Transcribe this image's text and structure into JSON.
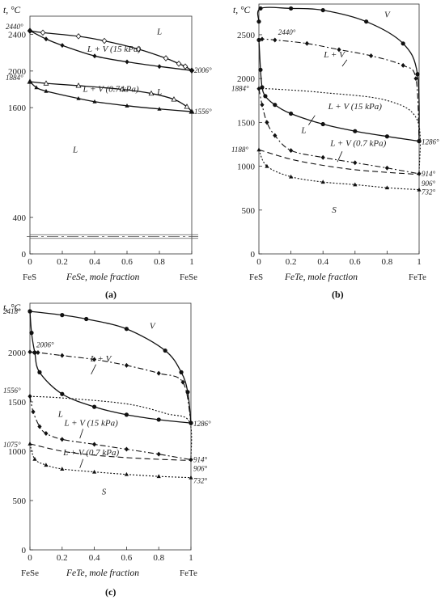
{
  "chart_data": [
    {
      "type": "line",
      "panel": "(a)",
      "ylabel": "t, °C",
      "xlabel": "FeSe, mole fraction",
      "x_end_labels": [
        "FeS",
        "FeSe"
      ],
      "xlim": [
        0,
        1
      ],
      "ylim": [
        0,
        2600
      ],
      "yticks": [
        0,
        400,
        1600,
        2000,
        2400
      ],
      "xticks": [
        0,
        0.2,
        0.4,
        0.6,
        0.8,
        1
      ],
      "region_labels": [
        "L",
        "L",
        "L",
        "L + V (15 kPa)",
        "L + V (0.7 kPa)"
      ],
      "annotations": [
        "2440°",
        "2006°",
        "1884°",
        "1556°"
      ],
      "series": [
        {
          "style": "solid",
          "marker": "open-diamond",
          "x": [
            0,
            0.08,
            0.3,
            0.46,
            0.67,
            0.84,
            0.92,
            0.96,
            1
          ],
          "y": [
            2440,
            2420,
            2380,
            2330,
            2240,
            2140,
            2080,
            2050,
            2006
          ]
        },
        {
          "style": "solid",
          "marker": "filled-diamond",
          "x": [
            0,
            0.1,
            0.2,
            0.4,
            0.6,
            0.8,
            1
          ],
          "y": [
            2440,
            2350,
            2280,
            2165,
            2100,
            2050,
            2006
          ]
        },
        {
          "style": "solid",
          "marker": "open-triangle",
          "x": [
            0,
            0.1,
            0.3,
            0.57,
            0.75,
            0.89,
            0.97,
            1
          ],
          "y": [
            1884,
            1865,
            1840,
            1800,
            1755,
            1690,
            1610,
            1556
          ]
        },
        {
          "style": "solid",
          "marker": "filled-triangle",
          "x": [
            0,
            0.04,
            0.1,
            0.3,
            0.4,
            0.6,
            0.8,
            1
          ],
          "y": [
            1884,
            1820,
            1780,
            1700,
            1665,
            1620,
            1585,
            1556
          ]
        }
      ]
    },
    {
      "type": "line",
      "panel": "(b)",
      "ylabel": "t, °C",
      "xlabel": "FeTe, mole fraction",
      "x_end_labels": [
        "FeS",
        "FeTe"
      ],
      "xlim": [
        0,
        1
      ],
      "ylim": [
        0,
        2850
      ],
      "yticks": [
        0,
        500,
        1000,
        1500,
        2000,
        2500
      ],
      "xticks": [
        0,
        0.2,
        0.4,
        0.6,
        0.8,
        1
      ],
      "region_labels": [
        "V",
        "L + V",
        "L + V (15 kPa)",
        "L",
        "L + V (0.7 kPa)",
        "S"
      ],
      "annotations": [
        "2440°",
        "1884°",
        "1188°",
        "1286°",
        "914°",
        "906°",
        "732°"
      ],
      "series": [
        {
          "style": "solid",
          "marker": "filled-circle",
          "x": [
            0,
            0.01,
            0.2,
            0.4,
            0.67,
            0.9,
            0.99,
            1
          ],
          "y": [
            2650,
            2800,
            2800,
            2780,
            2650,
            2400,
            2050,
            1286
          ]
        },
        {
          "style": "dash-dot",
          "marker": "filled-diamond",
          "x": [
            0,
            0.02,
            0.1,
            0.3,
            0.5,
            0.7,
            0.9,
            0.98,
            1
          ],
          "y": [
            2440,
            2450,
            2440,
            2400,
            2330,
            2260,
            2150,
            2000,
            1286
          ]
        },
        {
          "style": "solid",
          "marker": "filled-circle",
          "x": [
            0,
            0.01,
            0.02,
            0.04,
            0.1,
            0.2,
            0.4,
            0.6,
            0.8,
            1
          ],
          "y": [
            2440,
            2100,
            1900,
            1800,
            1700,
            1600,
            1480,
            1400,
            1340,
            1286
          ]
        },
        {
          "style": "dotted",
          "marker": "none",
          "x": [
            0,
            0.1,
            0.4,
            0.8,
            0.99,
            1
          ],
          "y": [
            1884,
            1880,
            1840,
            1750,
            1520,
            914
          ]
        },
        {
          "style": "dash-dot",
          "marker": "filled-diamond",
          "x": [
            0,
            0.02,
            0.05,
            0.1,
            0.2,
            0.4,
            0.6,
            0.8,
            1
          ],
          "y": [
            1884,
            1700,
            1500,
            1350,
            1180,
            1100,
            1040,
            980,
            914
          ]
        },
        {
          "style": "dashed",
          "marker": "none",
          "x": [
            0,
            0.2,
            0.4,
            0.6,
            0.8,
            1
          ],
          "y": [
            1188,
            1080,
            1010,
            960,
            930,
            906
          ]
        },
        {
          "style": "dotted",
          "marker": "filled-triangle",
          "x": [
            0,
            0.05,
            0.2,
            0.4,
            0.6,
            0.8,
            1
          ],
          "y": [
            1188,
            1000,
            880,
            820,
            790,
            755,
            732
          ]
        }
      ]
    },
    {
      "type": "line",
      "panel": "(c)",
      "ylabel": "t, °C",
      "xlabel": "FeTe, mole fraction",
      "x_end_labels": [
        "FeSe",
        "FeTe"
      ],
      "xlim": [
        0,
        1
      ],
      "ylim": [
        0,
        2500
      ],
      "yticks": [
        0,
        500,
        1000,
        1500,
        2000
      ],
      "xticks": [
        0,
        0.2,
        0.4,
        0.6,
        0.8,
        1
      ],
      "region_labels": [
        "V",
        "L + V",
        "L",
        "L + V (15 kPa)",
        "L + V (0.7 kPa)",
        "S"
      ],
      "annotations": [
        "2418°",
        "2006°",
        "1556°",
        "1075°",
        "1286°",
        "914°",
        "906°",
        "732°"
      ],
      "series": [
        {
          "style": "solid",
          "marker": "filled-circle",
          "x": [
            0,
            0.2,
            0.35,
            0.6,
            0.84,
            0.94,
            0.98,
            1
          ],
          "y": [
            2418,
            2380,
            2340,
            2240,
            2020,
            1800,
            1600,
            1286
          ]
        },
        {
          "style": "dash-dot",
          "marker": "filled-diamond",
          "x": [
            0,
            0.05,
            0.2,
            0.4,
            0.6,
            0.8,
            0.95,
            1
          ],
          "y": [
            2006,
            2000,
            1970,
            1930,
            1870,
            1790,
            1700,
            1286
          ]
        },
        {
          "style": "solid",
          "marker": "filled-circle",
          "x": [
            0,
            0.01,
            0.03,
            0.06,
            0.2,
            0.4,
            0.6,
            0.8,
            1
          ],
          "y": [
            2418,
            2200,
            2000,
            1800,
            1580,
            1450,
            1370,
            1320,
            1286
          ]
        },
        {
          "style": "dotted",
          "marker": "none",
          "x": [
            0,
            0.2,
            0.6,
            0.85,
            0.99,
            1
          ],
          "y": [
            1556,
            1540,
            1480,
            1380,
            1300,
            914
          ]
        },
        {
          "style": "dash-dot",
          "marker": "filled-diamond",
          "x": [
            0,
            0.02,
            0.06,
            0.1,
            0.2,
            0.4,
            0.6,
            0.8,
            1
          ],
          "y": [
            1556,
            1400,
            1250,
            1180,
            1120,
            1070,
            1020,
            970,
            914
          ]
        },
        {
          "style": "dashed",
          "marker": "none",
          "x": [
            0,
            0.2,
            0.4,
            0.6,
            0.8,
            1
          ],
          "y": [
            1075,
            1000,
            960,
            935,
            918,
            906
          ]
        },
        {
          "style": "dotted",
          "marker": "filled-triangle",
          "x": [
            0,
            0.03,
            0.1,
            0.2,
            0.4,
            0.6,
            0.8,
            1
          ],
          "y": [
            1075,
            920,
            860,
            820,
            790,
            765,
            745,
            732
          ]
        }
      ]
    }
  ]
}
